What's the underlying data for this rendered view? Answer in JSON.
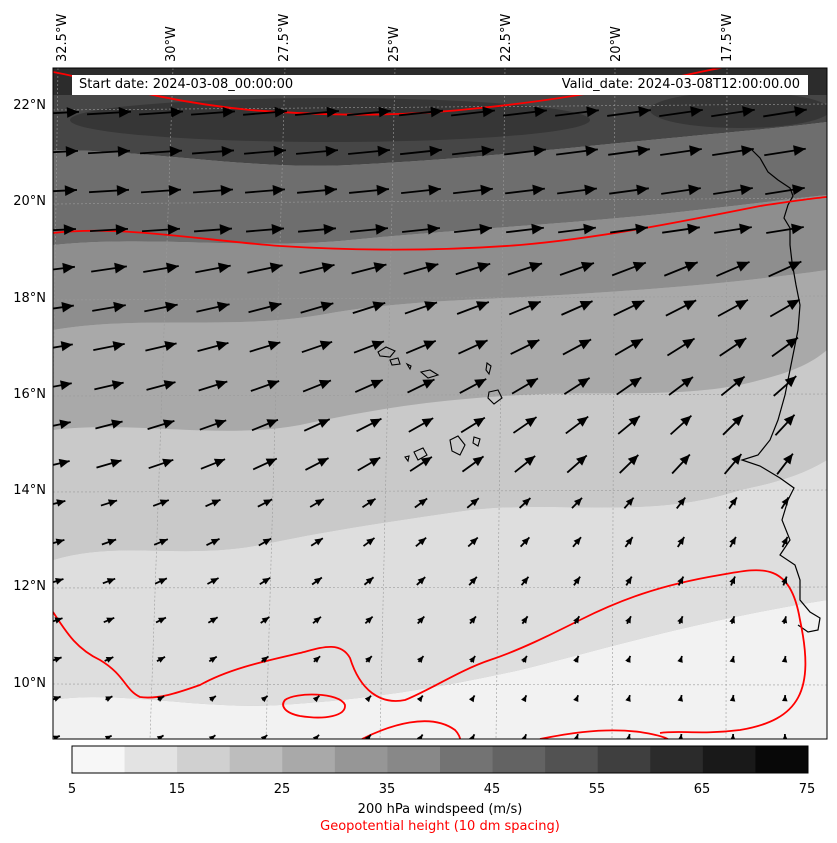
{
  "map": {
    "header": {
      "start_date": "Start date: 2024-03-08_00:00:00",
      "valid_date": "Valid_date: 2024-03-08T12:00:00.00"
    },
    "lon_labels": [
      "32.5°W",
      "30°W",
      "27.5°W",
      "25°W",
      "22.5°W",
      "20°W",
      "17.5°W"
    ],
    "lat_labels": [
      "22°N",
      "20°N",
      "18°N",
      "16°N",
      "14°N",
      "12°N",
      "10°N"
    ],
    "colorbar": {
      "ticks": [
        "5",
        "15",
        "25",
        "35",
        "45",
        "55",
        "65",
        "75"
      ],
      "title": "200 hPa windspeed (m/s)",
      "subtitle": "Geopotential height (10 dm spacing)",
      "colors": [
        "#f7f7f7",
        "#e3e3e3",
        "#d0d0d0",
        "#bdbdbd",
        "#a9a9a9",
        "#969696",
        "#888888",
        "#737373",
        "#636363",
        "#525252",
        "#3f3f3f",
        "#2b2b2b",
        "#191919",
        "#080808"
      ]
    },
    "contour_color": "#ff0000"
  }
}
